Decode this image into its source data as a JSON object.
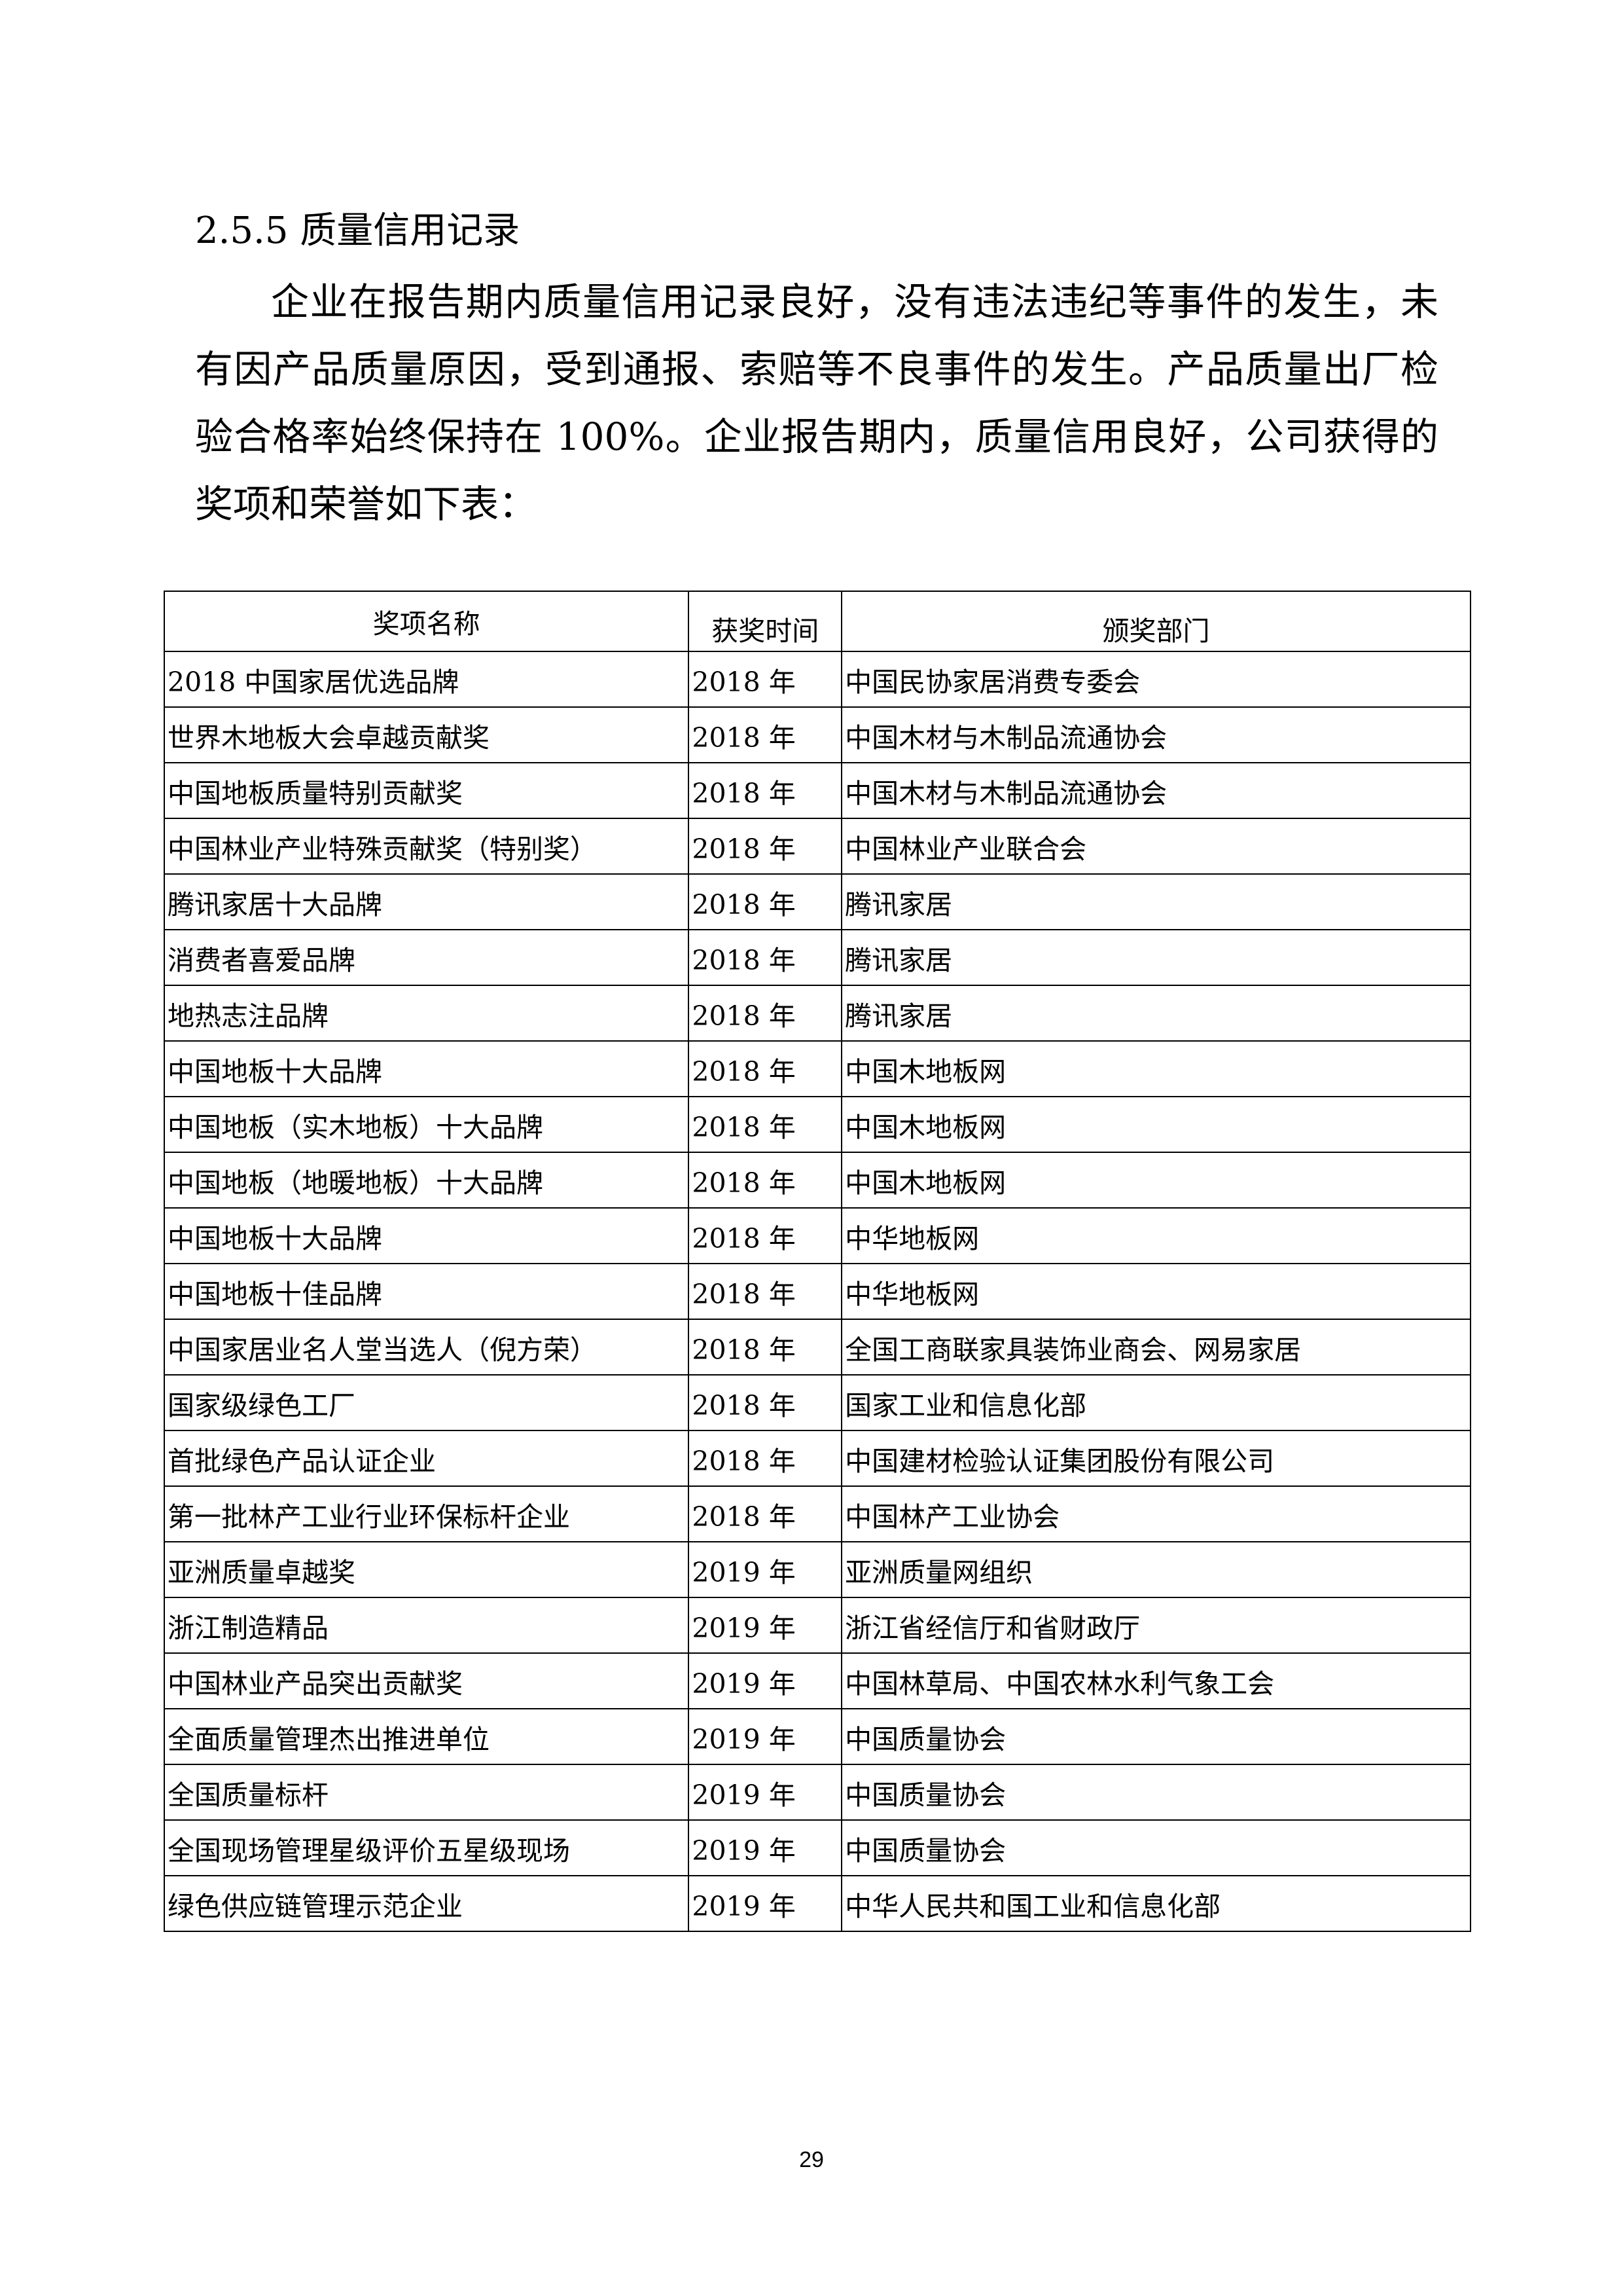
{
  "section_heading": "2.5.5 质量信用记录",
  "paragraph": "企业在报告期内质量信用记录良好，没有违法违纪等事件的发生，未有因产品质量原因，受到通报、索赔等不良事件的发生。产品质量出厂检验合格率始终保持在 100%。企业报告期内，质量信用良好，公司获得的奖项和荣誉如下表：",
  "table": {
    "headers": [
      "奖项名称",
      "获奖时间",
      "颁奖部门"
    ],
    "rows": [
      [
        "2018 中国家居优选品牌",
        "2018 年",
        "中国民协家居消费专委会"
      ],
      [
        "世界木地板大会卓越贡献奖",
        "2018 年",
        "中国木材与木制品流通协会"
      ],
      [
        "中国地板质量特别贡献奖",
        "2018 年",
        "中国木材与木制品流通协会"
      ],
      [
        "中国林业产业特殊贡献奖（特别奖）",
        "2018 年",
        "中国林业产业联合会"
      ],
      [
        "腾讯家居十大品牌",
        "2018 年",
        "腾讯家居"
      ],
      [
        "消费者喜爱品牌",
        "2018 年",
        "腾讯家居"
      ],
      [
        "地热志注品牌",
        "2018 年",
        "腾讯家居"
      ],
      [
        "中国地板十大品牌",
        "2018 年",
        "中国木地板网"
      ],
      [
        "中国地板（实木地板）十大品牌",
        "2018 年",
        "中国木地板网"
      ],
      [
        "中国地板（地暖地板）十大品牌",
        "2018 年",
        "中国木地板网"
      ],
      [
        "中国地板十大品牌",
        "2018 年",
        "中华地板网"
      ],
      [
        "中国地板十佳品牌",
        "2018 年",
        "中华地板网"
      ],
      [
        "中国家居业名人堂当选人（倪方荣）",
        "2018 年",
        "全国工商联家具装饰业商会、网易家居"
      ],
      [
        "国家级绿色工厂",
        "2018 年",
        "国家工业和信息化部"
      ],
      [
        "首批绿色产品认证企业",
        "2018 年",
        "中国建材检验认证集团股份有限公司"
      ],
      [
        "第一批林产工业行业环保标杆企业",
        "2018 年",
        "中国林产工业协会"
      ],
      [
        "亚洲质量卓越奖",
        "2019 年",
        "亚洲质量网组织"
      ],
      [
        "浙江制造精品",
        "2019 年",
        "浙江省经信厅和省财政厅"
      ],
      [
        "中国林业产品突出贡献奖",
        "2019 年",
        "中国林草局、中国农林水利气象工会"
      ],
      [
        "全面质量管理杰出推进单位",
        "2019 年",
        "中国质量协会"
      ],
      [
        "全国质量标杆",
        "2019 年",
        "中国质量协会"
      ],
      [
        "全国现场管理星级评价五星级现场",
        "2019 年",
        "中国质量协会"
      ],
      [
        "绿色供应链管理示范企业",
        "2019 年",
        "中华人民共和国工业和信息化部"
      ]
    ]
  },
  "page_number": "29"
}
